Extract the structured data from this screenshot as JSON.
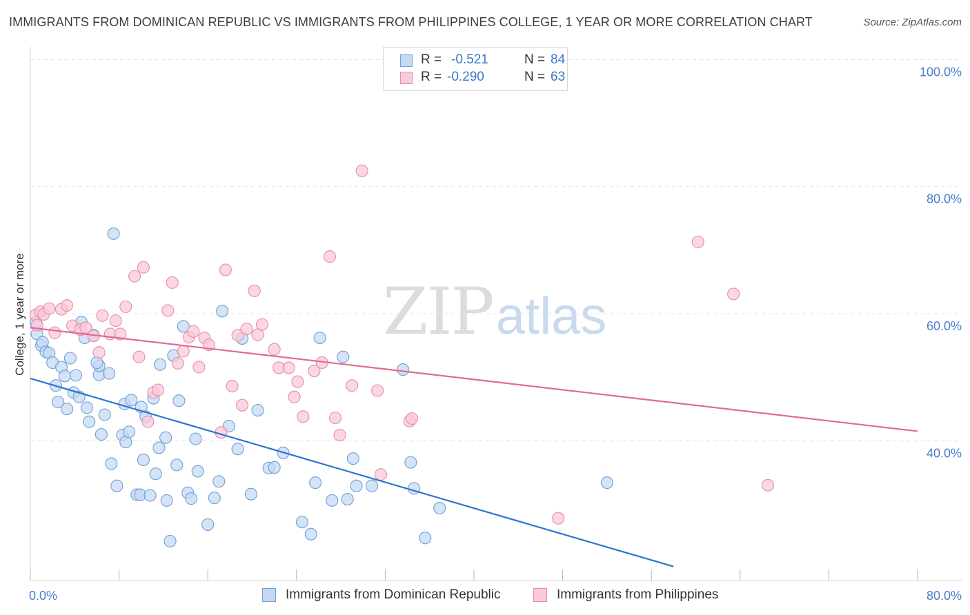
{
  "title": "IMMIGRANTS FROM DOMINICAN REPUBLIC VS IMMIGRANTS FROM PHILIPPINES COLLEGE, 1 YEAR OR MORE CORRELATION CHART",
  "source": "Source: ZipAtlas.com",
  "watermark": {
    "zip": "ZIP",
    "atlas": "atlas"
  },
  "legend": {
    "rows": [
      {
        "r_label": "R =",
        "r_value": "-0.521",
        "n_label": "N =",
        "n_value": "84"
      },
      {
        "r_label": "R =",
        "r_value": "-0.290",
        "n_label": "N =",
        "n_value": "63"
      }
    ]
  },
  "bottom_legend": {
    "series1": "Immigrants from Dominican Republic",
    "series2": "Immigrants from Philippines"
  },
  "colors": {
    "series1_fill": "#c5d9f3",
    "series1_stroke": "#6f9fd8",
    "series1_line": "#2e74d0",
    "series2_fill": "#f9cad9",
    "series2_stroke": "#e88aaa",
    "series2_line": "#e06a93",
    "grid": "#e0e0e0",
    "axis_text": "#4a7ecb"
  },
  "chart_data": {
    "type": "scatter",
    "title": "IMMIGRANTS FROM DOMINICAN REPUBLIC VS IMMIGRANTS FROM PHILIPPINES COLLEGE, 1 YEAR OR MORE CORRELATION CHART",
    "xlabel": "",
    "ylabel": "College, 1 year or more",
    "xlim": [
      0,
      80
    ],
    "ylim": [
      18,
      102
    ],
    "x_tick_labels": [
      "0.0%",
      "80.0%"
    ],
    "y_ticks": [
      40,
      60,
      80,
      100
    ],
    "y_tick_labels": [
      "40.0%",
      "60.0%",
      "80.0%",
      "100.0%"
    ],
    "grid": true,
    "legend_position": "top-center",
    "series": [
      {
        "name": "Immigrants from Dominican Republic",
        "stats": {
          "R": -0.521,
          "N": 84
        },
        "trend": {
          "x": [
            0,
            58
          ],
          "y": [
            49.8,
            20.2
          ]
        },
        "points": [
          [
            0.5,
            58.6
          ],
          [
            0.6,
            56.8
          ],
          [
            1.0,
            55.0
          ],
          [
            1.1,
            55.5
          ],
          [
            1.4,
            54.0
          ],
          [
            1.7,
            53.8
          ],
          [
            2.0,
            52.3
          ],
          [
            2.3,
            48.7
          ],
          [
            2.5,
            46.1
          ],
          [
            2.8,
            51.6
          ],
          [
            3.1,
            50.2
          ],
          [
            3.3,
            45.0
          ],
          [
            3.9,
            47.6
          ],
          [
            4.1,
            50.3
          ],
          [
            4.4,
            46.9
          ],
          [
            4.6,
            58.7
          ],
          [
            4.9,
            56.2
          ],
          [
            5.1,
            45.2
          ],
          [
            5.3,
            43.0
          ],
          [
            5.7,
            56.6
          ],
          [
            6.2,
            50.4
          ],
          [
            6.2,
            51.8
          ],
          [
            6.4,
            41.0
          ],
          [
            6.7,
            44.1
          ],
          [
            7.1,
            50.6
          ],
          [
            7.3,
            36.4
          ],
          [
            7.5,
            72.6
          ],
          [
            7.8,
            32.9
          ],
          [
            8.3,
            40.9
          ],
          [
            8.5,
            45.8
          ],
          [
            8.6,
            39.8
          ],
          [
            8.9,
            41.4
          ],
          [
            9.1,
            46.4
          ],
          [
            9.6,
            31.5
          ],
          [
            9.9,
            31.5
          ],
          [
            10.0,
            45.3
          ],
          [
            10.2,
            37.0
          ],
          [
            10.4,
            43.8
          ],
          [
            10.8,
            31.4
          ],
          [
            11.1,
            46.7
          ],
          [
            11.3,
            34.8
          ],
          [
            11.6,
            38.9
          ],
          [
            11.7,
            52.0
          ],
          [
            12.2,
            40.5
          ],
          [
            12.3,
            30.6
          ],
          [
            12.6,
            24.2
          ],
          [
            12.9,
            53.4
          ],
          [
            13.2,
            36.2
          ],
          [
            13.4,
            46.3
          ],
          [
            13.8,
            58.0
          ],
          [
            14.2,
            31.8
          ],
          [
            14.5,
            30.9
          ],
          [
            14.9,
            40.3
          ],
          [
            15.1,
            35.2
          ],
          [
            16.0,
            26.8
          ],
          [
            16.6,
            31.0
          ],
          [
            17.0,
            33.6
          ],
          [
            17.3,
            60.4
          ],
          [
            17.9,
            42.3
          ],
          [
            18.7,
            38.7
          ],
          [
            19.1,
            56.1
          ],
          [
            19.9,
            31.6
          ],
          [
            20.5,
            44.8
          ],
          [
            21.5,
            35.7
          ],
          [
            22.0,
            35.8
          ],
          [
            22.8,
            38.1
          ],
          [
            24.5,
            27.2
          ],
          [
            25.3,
            25.3
          ],
          [
            25.7,
            33.4
          ],
          [
            26.1,
            56.2
          ],
          [
            27.2,
            30.6
          ],
          [
            28.2,
            53.2
          ],
          [
            28.6,
            30.8
          ],
          [
            29.1,
            37.2
          ],
          [
            29.4,
            32.9
          ],
          [
            30.8,
            32.9
          ],
          [
            33.6,
            51.2
          ],
          [
            34.3,
            36.6
          ],
          [
            34.6,
            32.5
          ],
          [
            35.6,
            24.7
          ],
          [
            36.9,
            29.4
          ],
          [
            52.0,
            33.4
          ],
          [
            3.6,
            53.0
          ],
          [
            6.0,
            52.3
          ]
        ]
      },
      {
        "name": "Immigrants from Philippines",
        "stats": {
          "R": -0.29,
          "N": 63
        },
        "trend": {
          "x": [
            0,
            80
          ],
          "y": [
            57.8,
            41.5
          ]
        },
        "points": [
          [
            0.5,
            59.8
          ],
          [
            0.6,
            58.2
          ],
          [
            0.9,
            60.3
          ],
          [
            1.2,
            59.9
          ],
          [
            1.7,
            60.8
          ],
          [
            2.2,
            57.0
          ],
          [
            2.8,
            60.7
          ],
          [
            3.3,
            61.3
          ],
          [
            3.8,
            58.1
          ],
          [
            4.5,
            57.5
          ],
          [
            5.0,
            57.8
          ],
          [
            5.7,
            56.5
          ],
          [
            6.2,
            53.9
          ],
          [
            6.5,
            59.7
          ],
          [
            7.2,
            56.8
          ],
          [
            7.7,
            58.9
          ],
          [
            8.1,
            56.8
          ],
          [
            8.6,
            61.1
          ],
          [
            9.4,
            65.9
          ],
          [
            9.8,
            53.2
          ],
          [
            10.2,
            67.3
          ],
          [
            10.6,
            43.0
          ],
          [
            11.1,
            47.6
          ],
          [
            11.5,
            48.0
          ],
          [
            12.4,
            60.5
          ],
          [
            12.8,
            64.9
          ],
          [
            13.3,
            52.2
          ],
          [
            13.8,
            54.1
          ],
          [
            14.3,
            56.3
          ],
          [
            14.7,
            57.2
          ],
          [
            15.2,
            51.6
          ],
          [
            15.7,
            56.2
          ],
          [
            16.1,
            55.1
          ],
          [
            17.2,
            41.3
          ],
          [
            17.6,
            66.9
          ],
          [
            18.2,
            48.6
          ],
          [
            18.7,
            56.6
          ],
          [
            19.1,
            45.6
          ],
          [
            19.5,
            57.6
          ],
          [
            20.2,
            63.6
          ],
          [
            20.5,
            56.7
          ],
          [
            20.9,
            58.3
          ],
          [
            22.0,
            54.4
          ],
          [
            22.4,
            51.5
          ],
          [
            23.3,
            51.5
          ],
          [
            23.8,
            46.9
          ],
          [
            24.1,
            49.3
          ],
          [
            24.6,
            43.8
          ],
          [
            25.6,
            51.0
          ],
          [
            26.3,
            52.3
          ],
          [
            27.0,
            69.0
          ],
          [
            27.5,
            43.6
          ],
          [
            27.9,
            40.9
          ],
          [
            29.0,
            48.7
          ],
          [
            29.9,
            82.5
          ],
          [
            31.3,
            47.9
          ],
          [
            31.6,
            34.7
          ],
          [
            34.2,
            43.1
          ],
          [
            34.4,
            43.5
          ],
          [
            47.6,
            27.8
          ],
          [
            60.2,
            71.3
          ],
          [
            63.4,
            63.1
          ],
          [
            66.5,
            33.0
          ]
        ]
      }
    ]
  }
}
